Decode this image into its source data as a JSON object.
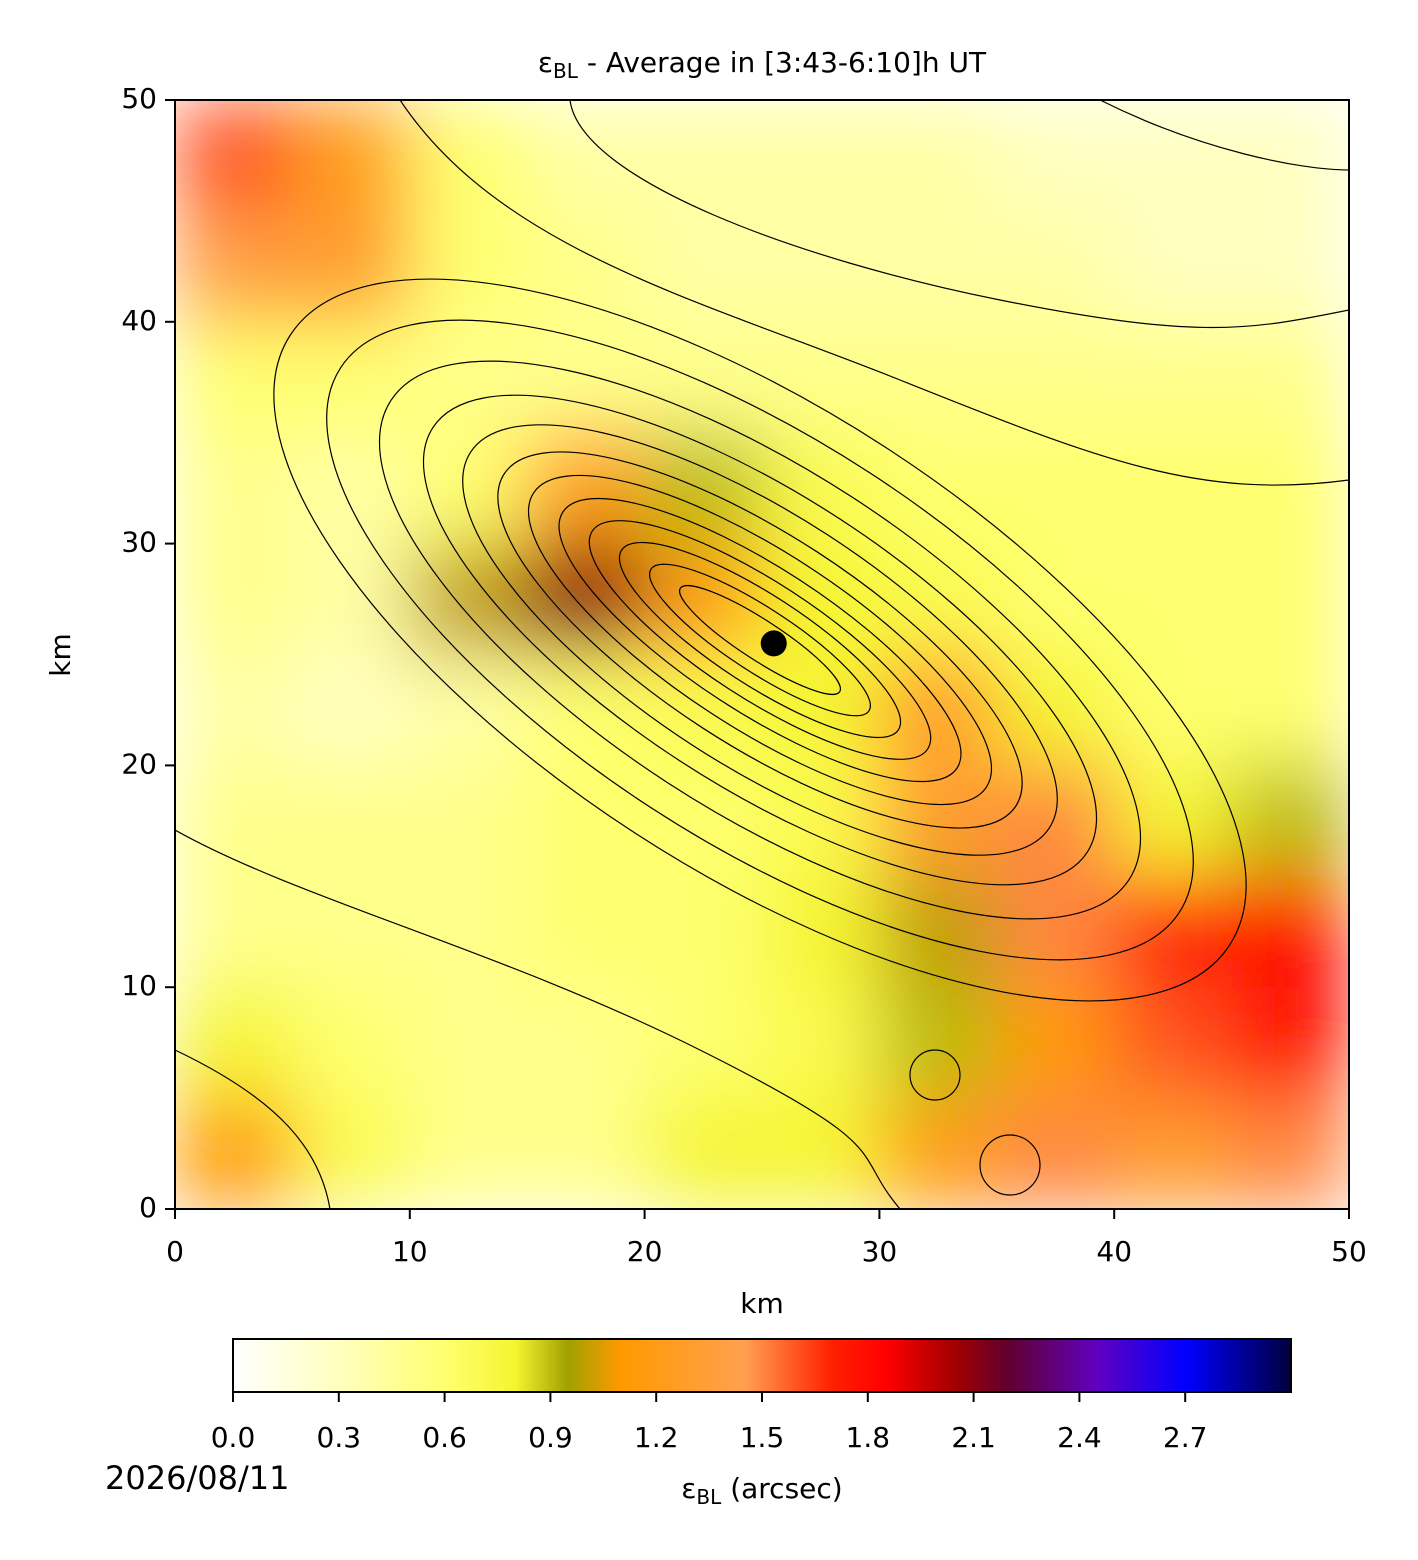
{
  "chart_data": {
    "type": "heatmap",
    "title": {
      "symbol": "ε",
      "subscript": "BL",
      "text": " - Average in [3:43-6:10]h UT"
    },
    "x_label": "km",
    "y_label": "km",
    "date": "2026/08/11",
    "x": [
      2.5,
      7.5,
      12.5,
      17.5,
      22.5,
      27.5,
      32.5,
      37.5,
      42.5,
      47.5
    ],
    "y": [
      47.5,
      42.5,
      37.5,
      32.5,
      27.5,
      22.5,
      17.5,
      12.5,
      7.5,
      2.5
    ],
    "z": [
      [
        1.6,
        1.2,
        0.6,
        0.4,
        0.4,
        0.4,
        0.4,
        0.3,
        0.3,
        0.3
      ],
      [
        1.4,
        1.3,
        0.6,
        0.5,
        0.4,
        0.4,
        0.4,
        0.4,
        0.3,
        0.3
      ],
      [
        0.6,
        0.6,
        0.5,
        0.5,
        0.5,
        0.5,
        0.5,
        0.5,
        0.5,
        0.5
      ],
      [
        0.5,
        0.4,
        0.6,
        1.2,
        0.9,
        0.7,
        0.6,
        0.6,
        0.6,
        0.6
      ],
      [
        0.5,
        0.4,
        1.0,
        2.1,
        1.2,
        0.8,
        0.7,
        0.6,
        0.6,
        0.6
      ],
      [
        0.4,
        0.3,
        0.4,
        0.6,
        0.7,
        0.8,
        1.3,
        0.8,
        0.6,
        0.6
      ],
      [
        0.5,
        0.5,
        0.5,
        0.6,
        0.6,
        0.7,
        1.3,
        1.5,
        0.8,
        0.9
      ],
      [
        0.5,
        0.5,
        0.5,
        0.6,
        0.6,
        0.8,
        1.0,
        1.5,
        1.7,
        1.8
      ],
      [
        0.8,
        0.6,
        0.5,
        0.5,
        0.6,
        0.7,
        0.9,
        1.1,
        1.6,
        1.8
      ],
      [
        1.1,
        0.7,
        0.5,
        0.5,
        0.8,
        0.8,
        1.2,
        1.5,
        1.3,
        1.5
      ]
    ],
    "cell_size": 5,
    "xlim": [
      0,
      50
    ],
    "ylim": [
      0,
      50
    ],
    "xticks": [
      0,
      10,
      20,
      30,
      40,
      50
    ],
    "yticks": [
      0,
      10,
      20,
      30,
      40,
      50
    ],
    "markers": [
      {
        "x": 25.5,
        "y": 25.5,
        "color": "#000000"
      }
    ],
    "colorbar": {
      "label": {
        "symbol": "ε",
        "subscript": "BL",
        "text": " (arcsec)"
      },
      "clim": [
        0,
        3.0
      ],
      "ticks": [
        {
          "value": 0,
          "label": "0.0"
        },
        0.3,
        0.6,
        0.9,
        1.2,
        1.5,
        1.8,
        2.1,
        2.4,
        2.7
      ],
      "colormap": [
        {
          "value": 0,
          "color": "#ffffff"
        },
        {
          "value": 0.3,
          "color": "#ffffc0"
        },
        {
          "value": 0.6,
          "color": "#ffff70"
        },
        {
          "value": 0.8,
          "color": "#f5f530"
        },
        {
          "value": 0.95,
          "color": "#a0a000"
        },
        {
          "value": 1.1,
          "color": "#ff9a00"
        },
        {
          "value": 1.45,
          "color": "#ffa050"
        },
        {
          "value": 1.7,
          "color": "#ff2000"
        },
        {
          "value": 1.85,
          "color": "#ff0000"
        },
        {
          "value": 2.05,
          "color": "#a00000"
        },
        {
          "value": 2.2,
          "color": "#600030"
        },
        {
          "value": 2.45,
          "color": "#6000c0"
        },
        {
          "value": 2.7,
          "color": "#0000ff"
        },
        {
          "value": 3.0,
          "color": "#000040"
        }
      ]
    }
  }
}
